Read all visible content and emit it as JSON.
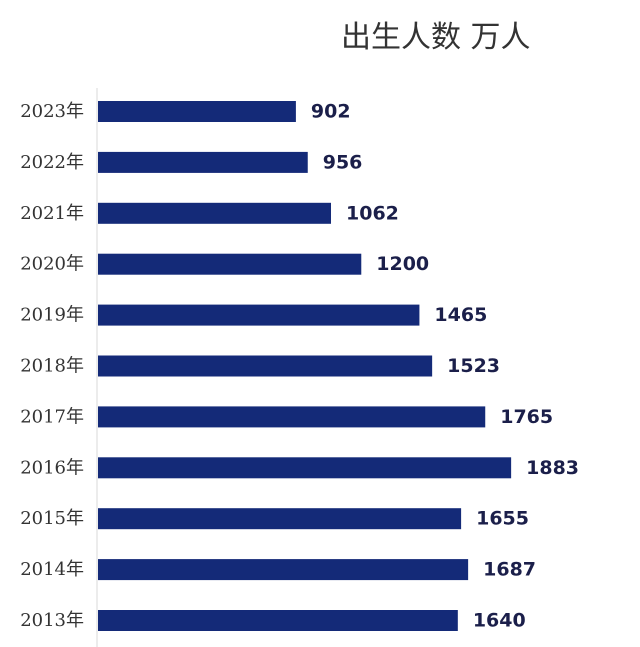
{
  "chart_data": {
    "type": "bar",
    "orientation": "horizontal",
    "title": "出生人数 万人",
    "categories": [
      "2023年",
      "2022年",
      "2021年",
      "2020年",
      "2019年",
      "2018年",
      "2017年",
      "2016年",
      "2015年",
      "2014年",
      "2013年"
    ],
    "values": [
      902,
      956,
      1062,
      1200,
      1465,
      1523,
      1765,
      1883,
      1655,
      1687,
      1640
    ],
    "xlabel": "",
    "ylabel": "",
    "xlim": [
      0,
      2000
    ],
    "grid": false,
    "legend": "none",
    "colors": {
      "bar": "#142a78",
      "value_text": "#1b1f4a",
      "category_text": "#333333",
      "axis": "#d9d9d9"
    }
  }
}
